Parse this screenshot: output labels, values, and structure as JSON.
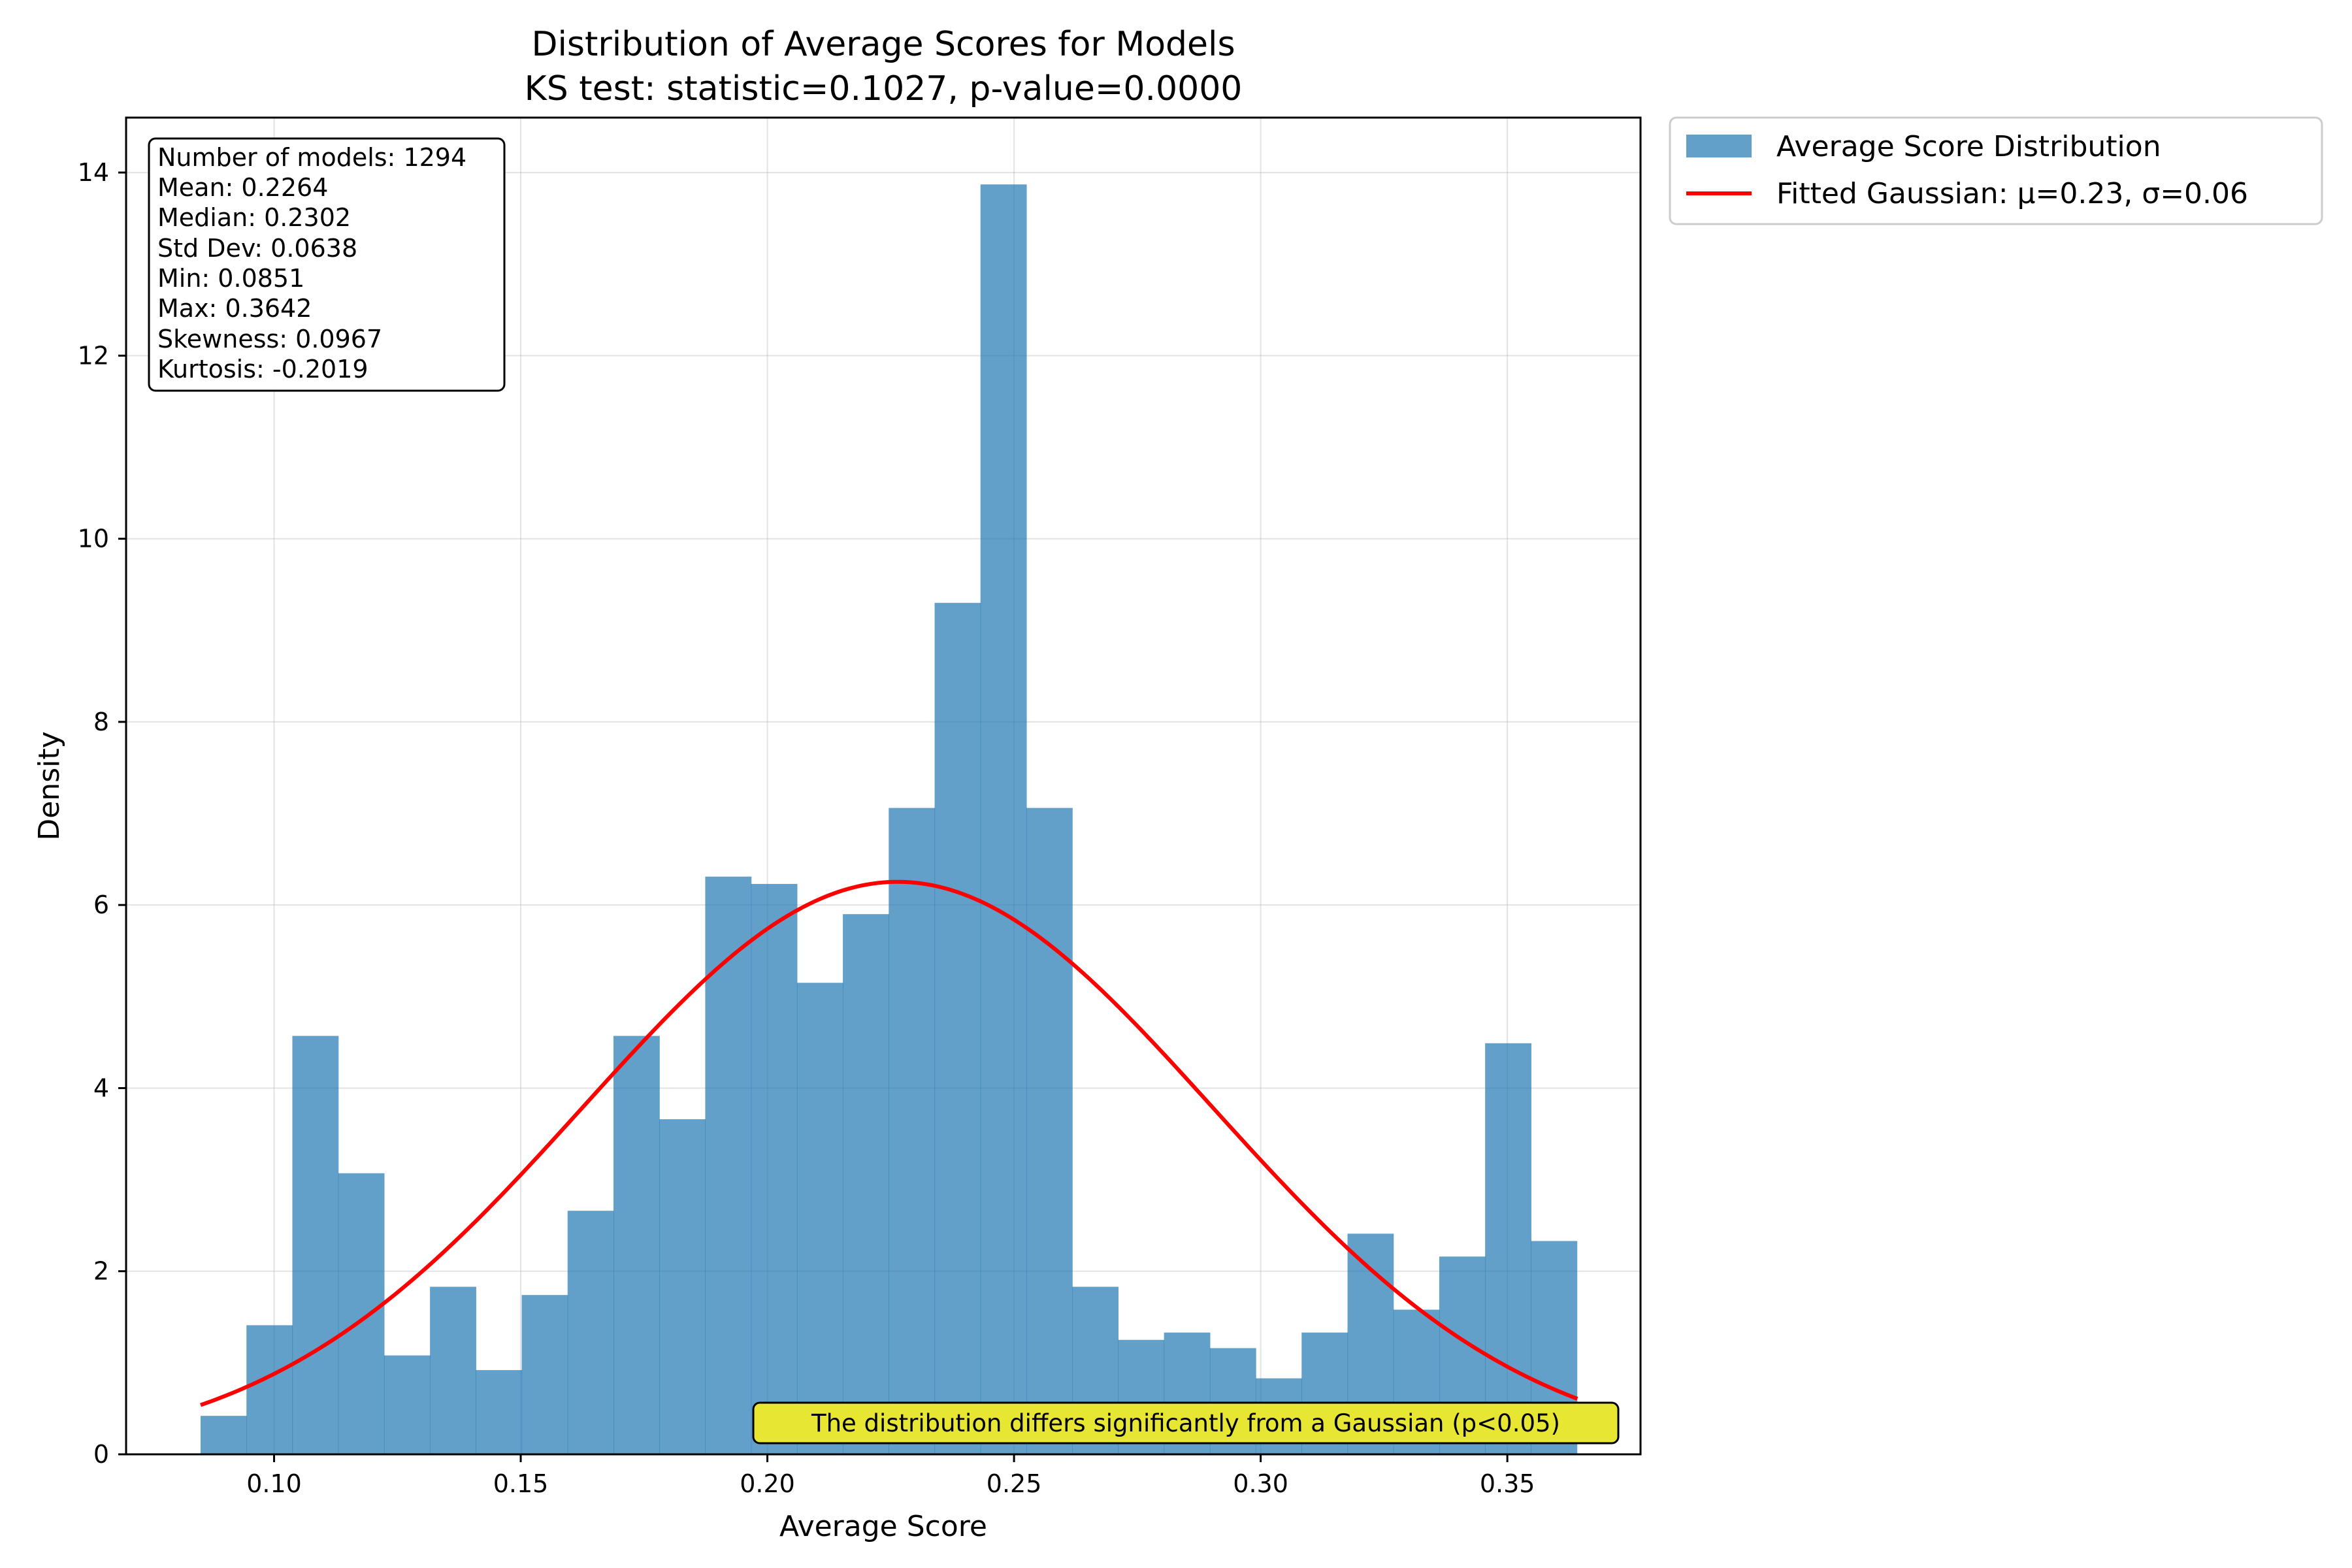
{
  "chart_data": {
    "type": "bar",
    "title": "Distribution of Average Scores for Models",
    "subtitle": "KS test: statistic=0.1027, p-value=0.0000",
    "xlabel": "Average Score",
    "ylabel": "Density",
    "xlim": [
      0.07,
      0.377
    ],
    "ylim": [
      0,
      14.6
    ],
    "xticks": [
      "0.10",
      "0.15",
      "0.20",
      "0.25",
      "0.30",
      "0.35"
    ],
    "yticks": [
      "0",
      "2",
      "4",
      "6",
      "8",
      "10",
      "12",
      "14"
    ],
    "grid": true,
    "bar_color": "#1f77b4",
    "bins": {
      "start": 0.0851,
      "width": 0.0093,
      "values": [
        0.42,
        1.41,
        4.57,
        3.07,
        1.08,
        1.83,
        0.92,
        1.74,
        2.66,
        4.57,
        3.66,
        6.31,
        6.23,
        5.15,
        5.9,
        7.06,
        9.3,
        13.87,
        7.06,
        1.83,
        1.25,
        1.33,
        1.16,
        0.83,
        1.33,
        2.41,
        1.58,
        2.16,
        4.49,
        2.33
      ]
    },
    "gaussian": {
      "name": "Fitted Gaussian: μ=0.23, σ=0.06",
      "mu": 0.2264,
      "sigma": 0.0638,
      "x_range": [
        0.0851,
        0.3642
      ],
      "color": "#ff0000"
    },
    "legend": {
      "placement": "outside-top-right",
      "entries": [
        "Average Score Distribution",
        "Fitted Gaussian: μ=0.23, σ=0.06"
      ]
    },
    "stats_box": [
      "Number of models: 1294",
      "Mean: 0.2264",
      "Median: 0.2302",
      "Std Dev: 0.0638",
      "Min: 0.0851",
      "Max: 0.3642",
      "Skewness: 0.0967",
      "Kurtosis: -0.2019"
    ],
    "annotation": {
      "text": "The distribution differs significantly from a Gaussian (p<0.05)",
      "background": "#e6e633"
    }
  }
}
